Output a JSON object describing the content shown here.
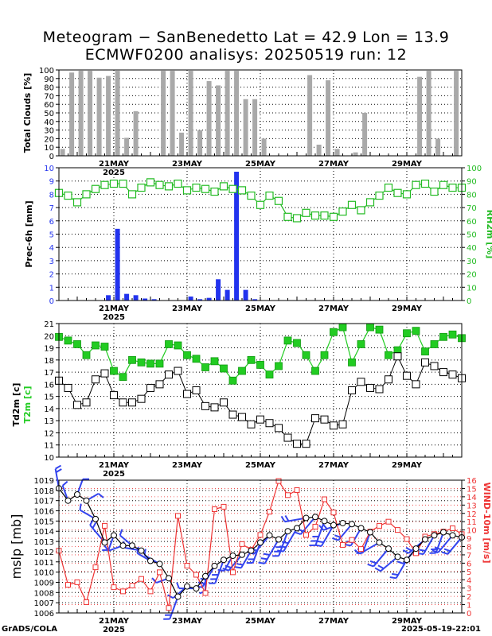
{
  "header": {
    "line1": "Meteogram − SanBenedetto Lat = 42.9 Lon = 13.9",
    "line2": "ECMWF0200 analisys: 20250519 run: 12"
  },
  "footer": {
    "left": "GrADS/COLA",
    "right": "2025-05-19-22:01"
  },
  "colors": {
    "bar_gray": "#a9a9a9",
    "precip_blue": "#2233ee",
    "rh_green": "#22bb22",
    "temp_green": "#22cc22",
    "dewpoint_black": "#000000",
    "wind_red": "#ee3333",
    "barb_blue": "#3344ee"
  },
  "chart_data": [
    {
      "id": "clouds",
      "type": "bar",
      "ylabel": "Total Clouds [%]",
      "ylim": [
        0,
        100
      ],
      "yticks": [
        0,
        10,
        20,
        30,
        40,
        50,
        60,
        70,
        80,
        90,
        100
      ],
      "grid": true,
      "x": [
        0.2,
        0.7,
        1.2,
        1.7,
        2.2,
        2.7,
        3.2,
        3.7,
        4.2,
        4.7,
        5.2,
        5.7,
        6.2,
        6.7,
        7.2,
        7.7,
        8.2,
        8.7,
        9.2,
        9.7,
        10.2,
        10.7,
        11.2,
        11.7,
        12.2,
        12.7,
        13.2,
        13.7,
        14.2,
        14.7,
        15.2,
        15.7,
        16.2,
        16.7,
        17.2,
        17.7,
        18.2,
        18.7,
        19.2,
        19.7,
        20.2,
        20.7,
        21.2,
        21.7
      ],
      "values": [
        8,
        97,
        99,
        99,
        91,
        93,
        99,
        21,
        52,
        0,
        0,
        99,
        99,
        27,
        99,
        30,
        87,
        82,
        99,
        99,
        66,
        66,
        20,
        0,
        0,
        0,
        0,
        94,
        13,
        88,
        8,
        0,
        4,
        50,
        0,
        0,
        0,
        0,
        0,
        92,
        99,
        20,
        0,
        99
      ]
    },
    {
      "id": "precip",
      "type": "bar",
      "ylabel": "Prec-6h [mm]",
      "ylim": [
        0,
        10
      ],
      "yticks": [
        0,
        1,
        2,
        3,
        4,
        5,
        6,
        7,
        8,
        9,
        10
      ],
      "grid": true,
      "x": [
        2.7,
        3.2,
        3.7,
        4.2,
        4.7,
        5.2,
        7.2,
        7.7,
        8.2,
        8.7,
        9.2,
        9.7,
        10.2,
        10.7
      ],
      "values": [
        0.4,
        5.4,
        0.5,
        0.4,
        0.15,
        0.1,
        0.3,
        0.1,
        0.2,
        1.6,
        0.8,
        9.7,
        0.8,
        0.1
      ],
      "rh2m": {
        "ylabel": "RH2m [%]",
        "ylim": [
          0,
          100
        ],
        "yticks": [
          0,
          10,
          20,
          30,
          40,
          50,
          60,
          70,
          80,
          90,
          100
        ],
        "x": [
          0,
          0.5,
          1,
          1.5,
          2,
          2.5,
          3,
          3.5,
          4,
          4.5,
          5,
          5.5,
          6,
          6.5,
          7,
          7.5,
          8,
          8.5,
          9,
          9.5,
          10,
          10.5,
          11,
          11.5,
          12,
          12.5,
          13,
          13.5,
          14,
          14.5,
          15,
          15.5,
          16,
          16.5,
          17,
          17.5,
          18,
          18.5,
          19,
          19.5,
          20,
          20.5,
          21,
          21.5,
          22
        ],
        "values": [
          81,
          79,
          74,
          80,
          84,
          87,
          88,
          88,
          80,
          85,
          89,
          87,
          86,
          88,
          83,
          85,
          84,
          82,
          86,
          84,
          83,
          79,
          72,
          79,
          75,
          63,
          62,
          66,
          64,
          64,
          63,
          67,
          72,
          68,
          74,
          79,
          85,
          81,
          80,
          87,
          88,
          82,
          87,
          85,
          85
        ]
      }
    },
    {
      "id": "temperature",
      "type": "line",
      "ylabel_black": "Td2m [c]",
      "ylabel_green": "T2m [c]",
      "ylim": [
        10,
        21
      ],
      "yticks": [
        10,
        11,
        12,
        13,
        14,
        15,
        16,
        17,
        18,
        19,
        20,
        21
      ],
      "grid": true,
      "series": [
        {
          "name": "T2m",
          "x": [
            0,
            0.5,
            1,
            1.5,
            2,
            2.5,
            3,
            3.5,
            4,
            4.5,
            5,
            5.5,
            6,
            6.5,
            7,
            7.5,
            8,
            8.5,
            9,
            9.5,
            10,
            10.5,
            11,
            11.5,
            12,
            12.5,
            13,
            13.5,
            14,
            14.5,
            15,
            15.5,
            16,
            16.5,
            17,
            17.5,
            18,
            18.5,
            19,
            19.5,
            20,
            20.5,
            21,
            21.5,
            22
          ],
          "values": [
            19.9,
            19.6,
            19.3,
            18.4,
            19.2,
            19.1,
            17.1,
            16.6,
            18.0,
            17.8,
            17.7,
            17.7,
            19.3,
            19.2,
            18.4,
            18.1,
            17.4,
            17.9,
            17.3,
            16.3,
            17.1,
            18.0,
            17.6,
            16.8,
            17.5,
            19.6,
            19.4,
            18.4,
            17.1,
            18.4,
            20.3,
            20.7,
            17.8,
            19.3,
            20.7,
            20.5,
            18.4,
            18.8,
            20.2,
            20.4,
            18.7,
            19.3,
            19.9,
            20.1,
            19.8
          ]
        },
        {
          "name": "Td2m",
          "x": [
            0,
            0.5,
            1,
            1.5,
            2,
            2.5,
            3,
            3.5,
            4,
            4.5,
            5,
            5.5,
            6,
            6.5,
            7,
            7.5,
            8,
            8.5,
            9,
            9.5,
            10,
            10.5,
            11,
            11.5,
            12,
            12.5,
            13,
            13.5,
            14,
            14.5,
            15,
            15.5,
            16,
            16.5,
            17,
            17.5,
            18,
            18.5,
            19,
            19.5,
            20,
            20.5,
            21,
            21.5,
            22
          ],
          "values": [
            16.3,
            15.7,
            14.3,
            14.5,
            16.4,
            16.9,
            15.1,
            14.5,
            14.5,
            14.8,
            15.7,
            16.0,
            16.8,
            17.1,
            15.2,
            15.5,
            14.2,
            14.1,
            14.5,
            13.5,
            13.3,
            12.7,
            13.1,
            12.8,
            12.4,
            11.6,
            11.1,
            11.1,
            13.2,
            13.1,
            12.6,
            12.7,
            15.5,
            16.2,
            15.7,
            15.6,
            16.4,
            18.3,
            16.7,
            16.0,
            17.8,
            17.5,
            17.0,
            16.8,
            16.5
          ]
        }
      ]
    },
    {
      "id": "pressure",
      "type": "line",
      "ylabel": "mslp [mb]",
      "ylim": [
        1006,
        1019
      ],
      "yticks": [
        1006,
        1007,
        1008,
        1009,
        1010,
        1011,
        1012,
        1013,
        1014,
        1015,
        1016,
        1017,
        1018,
        1019
      ],
      "y2label": "WIND-10m [m/s]",
      "y2lim": [
        0,
        16
      ],
      "y2ticks": [
        0,
        1,
        2,
        3,
        4,
        5,
        6,
        7,
        8,
        9,
        10,
        11,
        12,
        13,
        14,
        15,
        16
      ],
      "grid": true,
      "series": [
        {
          "name": "mslp",
          "x": [
            0,
            0.5,
            1,
            1.5,
            2,
            2.5,
            3,
            3.5,
            4,
            4.5,
            5,
            5.5,
            6,
            6.5,
            7,
            7.5,
            8,
            8.5,
            9,
            9.5,
            10,
            10.5,
            11,
            11.5,
            12,
            12.5,
            13,
            13.5,
            14,
            14.5,
            15,
            15.5,
            16,
            16.5,
            17,
            17.5,
            18,
            18.5,
            19,
            19.5,
            20,
            20.5,
            21,
            21.5,
            22
          ],
          "values": [
            1018.2,
            1017.0,
            1017.6,
            1017.0,
            1015.2,
            1012.9,
            1013.6,
            1012.6,
            1012.6,
            1012.1,
            1011.1,
            1010.8,
            1009.4,
            1007.6,
            1008.6,
            1008.4,
            1009.6,
            1010.6,
            1011.2,
            1011.6,
            1011.7,
            1012.1,
            1012.9,
            1013.6,
            1013.2,
            1014.0,
            1014.3,
            1015.3,
            1015.4,
            1015.0,
            1014.6,
            1014.8,
            1014.7,
            1014.3,
            1013.9,
            1012.9,
            1012.3,
            1011.5,
            1011.2,
            1012.3,
            1013.2,
            1013.6,
            1013.9,
            1013.6,
            1013.4
          ]
        },
        {
          "name": "wind",
          "x": [
            0,
            0.5,
            1,
            1.5,
            2,
            2.5,
            3,
            3.5,
            4,
            4.5,
            5,
            5.5,
            6,
            6.5,
            7,
            7.5,
            8,
            8.5,
            9,
            9.5,
            10,
            10.5,
            11,
            11.5,
            12,
            12.5,
            13,
            13.5,
            14,
            14.5,
            15,
            15.5,
            16,
            16.5,
            17,
            17.5,
            18,
            18.5,
            19,
            19.5,
            20,
            20.5,
            21,
            21.5,
            22
          ],
          "values": [
            7.5,
            3.4,
            3.7,
            1.3,
            5.5,
            10.5,
            3.1,
            2.6,
            3.3,
            4.1,
            2.6,
            4.9,
            0.6,
            11.7,
            5.7,
            4.6,
            2.4,
            12.5,
            12.8,
            4.9,
            8.3,
            7.6,
            9.4,
            12.2,
            15.9,
            14.2,
            14.8,
            9.4,
            10.4,
            13.7,
            12.1,
            8.2,
            8.8,
            7.7,
            9.8,
            10.5,
            11.0,
            10.0,
            8.9,
            7.2,
            9.2,
            9.5,
            9.8,
            10.2,
            9.5
          ]
        }
      ],
      "barbs_dir_deg": [
        350,
        340,
        20,
        60,
        300,
        320,
        200,
        250,
        310,
        280,
        300,
        300,
        250,
        200,
        230,
        270,
        180,
        210,
        200,
        210,
        220,
        210,
        200,
        220,
        210,
        200,
        210,
        260,
        220,
        200,
        210,
        250,
        220,
        210,
        200,
        240,
        220,
        230,
        210,
        220,
        230,
        210,
        200,
        220,
        220
      ]
    }
  ],
  "x_axis": {
    "ticks": [
      {
        "x": 3,
        "label": "21MAY",
        "sub": "2025"
      },
      {
        "x": 7,
        "label": "23MAY"
      },
      {
        "x": 11,
        "label": "25MAY"
      },
      {
        "x": 15,
        "label": "27MAY"
      },
      {
        "x": 19,
        "label": "29MAY"
      }
    ]
  }
}
